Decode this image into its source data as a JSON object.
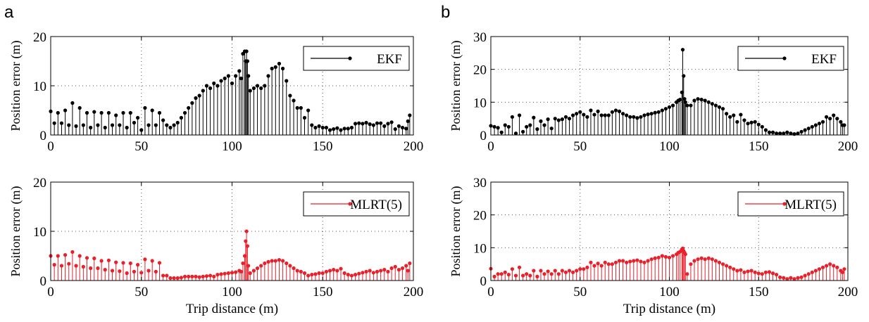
{
  "panels": [
    {
      "letter": "a"
    },
    {
      "letter": "b"
    }
  ],
  "chart_data": [
    {
      "type": "stem",
      "panel": "a",
      "ylabel": "Position error (m)",
      "xlabel": "",
      "xlim": [
        0,
        200
      ],
      "ylim": [
        0,
        20
      ],
      "xticks": [
        0,
        50,
        100,
        150,
        200
      ],
      "yticks": [
        0,
        10,
        20
      ],
      "grid": true,
      "legend_placement": "top-right",
      "series": [
        {
          "name": "EKF",
          "color": "#000000",
          "x": [
            0,
            2,
            4,
            6,
            8,
            10,
            12,
            14,
            16,
            18,
            20,
            22,
            24,
            26,
            28,
            30,
            32,
            34,
            36,
            38,
            40,
            42,
            44,
            46,
            48,
            50,
            52,
            54,
            56,
            58,
            60,
            62,
            64,
            66,
            68,
            70,
            72,
            74,
            76,
            78,
            80,
            82,
            84,
            86,
            88,
            90,
            92,
            94,
            96,
            98,
            100,
            102,
            104,
            105,
            106,
            107,
            107.5,
            108,
            108.5,
            109,
            110,
            112,
            114,
            116,
            118,
            120,
            122,
            124,
            126,
            128,
            130,
            132,
            134,
            136,
            138,
            140,
            142,
            144,
            146,
            148,
            150,
            152,
            154,
            156,
            158,
            160,
            162,
            164,
            166,
            168,
            170,
            172,
            174,
            176,
            178,
            180,
            182,
            184,
            186,
            188,
            190,
            192,
            194,
            196,
            197,
            198
          ],
          "y": [
            4.8,
            2.4,
            4.5,
            2.4,
            5,
            2,
            6.5,
            1.8,
            5.5,
            2,
            4.5,
            1.5,
            4.7,
            2,
            4.5,
            1.5,
            4.5,
            2,
            4,
            2,
            4.5,
            1.5,
            4.5,
            2.5,
            3.5,
            1,
            5.5,
            2,
            5,
            2,
            4.5,
            3,
            2,
            1.5,
            2,
            2.5,
            3.5,
            4.5,
            5.5,
            6.5,
            7.5,
            8,
            9,
            10,
            9.5,
            10.5,
            10,
            11,
            11.5,
            12,
            10.5,
            12,
            13,
            11.5,
            16.5,
            17,
            15,
            17,
            15,
            12,
            9,
            9.5,
            10,
            9.5,
            10,
            12,
            13.5,
            13.8,
            14.5,
            13.5,
            11,
            8,
            7,
            5.5,
            5.5,
            3.5,
            5,
            2,
            1.5,
            1.8,
            1.5,
            1.5,
            1,
            1.2,
            1.4,
            1,
            1.3,
            1.3,
            1.5,
            2.3,
            2.4,
            2.3,
            2.5,
            2.2,
            2,
            2.4,
            2.4,
            1.8,
            2.3,
            2.6,
            1.2,
            1.8,
            1.5,
            1.3,
            2.8,
            4
          ]
        }
      ]
    },
    {
      "type": "stem",
      "panel": "a",
      "ylabel": "Position error (m)",
      "xlabel": "Trip distance (m)",
      "xlim": [
        0,
        200
      ],
      "ylim": [
        0,
        20
      ],
      "xticks": [
        0,
        50,
        100,
        150,
        200
      ],
      "yticks": [
        0,
        10,
        20
      ],
      "grid": true,
      "legend_placement": "top-right",
      "series": [
        {
          "name": "MLRT(5)",
          "color": "#e8202a",
          "x": [
            0,
            2,
            4,
            6,
            8,
            10,
            12,
            14,
            16,
            18,
            20,
            22,
            24,
            26,
            28,
            30,
            32,
            34,
            36,
            38,
            40,
            42,
            44,
            46,
            48,
            50,
            52,
            54,
            56,
            58,
            60,
            62,
            64,
            66,
            68,
            70,
            72,
            74,
            76,
            78,
            80,
            82,
            84,
            86,
            88,
            90,
            92,
            94,
            96,
            98,
            100,
            102,
            104,
            105,
            106,
            107,
            107.5,
            108,
            108.5,
            109,
            110,
            112,
            114,
            116,
            118,
            120,
            122,
            124,
            126,
            128,
            130,
            132,
            134,
            136,
            138,
            140,
            142,
            144,
            146,
            148,
            150,
            152,
            154,
            156,
            158,
            160,
            162,
            164,
            166,
            168,
            170,
            172,
            174,
            176,
            178,
            180,
            182,
            184,
            186,
            188,
            190,
            192,
            194,
            196,
            197,
            198
          ],
          "y": [
            5,
            3.2,
            5,
            3,
            5.2,
            3.4,
            5.8,
            3,
            5,
            2.8,
            4.6,
            2.5,
            4.5,
            2.5,
            4,
            2.2,
            4.1,
            2,
            3.7,
            1.9,
            3.6,
            1.5,
            3.5,
            1.8,
            3.2,
            1.6,
            4.3,
            2,
            4,
            1.8,
            3.6,
            1,
            1,
            0.5,
            0.5,
            0.5,
            0.6,
            0.8,
            0.8,
            0.8,
            0.8,
            0.7,
            0.8,
            0.9,
            1,
            0.8,
            1.2,
            1.3,
            1.4,
            1.5,
            1.6,
            1.7,
            2,
            1.8,
            3.5,
            5,
            8,
            10,
            7,
            3,
            1.5,
            2,
            2.5,
            3,
            3.5,
            3.8,
            4,
            4,
            4.2,
            4,
            3.5,
            3,
            2.5,
            2,
            1.8,
            1.5,
            1,
            1.2,
            1.3,
            1.5,
            1.5,
            1.8,
            2,
            2.2,
            2,
            2.4,
            1.5,
            1.2,
            1,
            1.2,
            1.4,
            1.6,
            1.8,
            2,
            1.6,
            1.8,
            2,
            2.2,
            1.8,
            2.5,
            2.8,
            2.2,
            2.5,
            3,
            2,
            3.5
          ]
        }
      ]
    },
    {
      "type": "stem",
      "panel": "b",
      "ylabel": "Position error (m)",
      "xlabel": "",
      "xlim": [
        0,
        200
      ],
      "ylim": [
        0,
        30
      ],
      "xticks": [
        0,
        50,
        100,
        150,
        200
      ],
      "yticks": [
        0,
        10,
        20,
        30
      ],
      "grid": true,
      "legend_placement": "top-right",
      "series": [
        {
          "name": "EKF",
          "color": "#000000",
          "x": [
            0,
            2,
            4,
            6,
            8,
            10,
            12,
            14,
            16,
            18,
            20,
            22,
            24,
            26,
            28,
            30,
            32,
            34,
            36,
            38,
            40,
            42,
            44,
            46,
            48,
            50,
            52,
            54,
            56,
            58,
            60,
            62,
            64,
            66,
            68,
            70,
            72,
            74,
            76,
            78,
            80,
            82,
            84,
            86,
            88,
            90,
            92,
            94,
            96,
            98,
            100,
            102,
            104,
            105,
            106,
            107,
            107.5,
            108,
            108.5,
            109,
            110,
            112,
            114,
            116,
            118,
            120,
            122,
            124,
            126,
            128,
            130,
            132,
            134,
            136,
            138,
            140,
            142,
            144,
            146,
            148,
            150,
            152,
            154,
            156,
            158,
            160,
            162,
            164,
            166,
            168,
            170,
            172,
            174,
            176,
            178,
            180,
            182,
            184,
            186,
            188,
            190,
            192,
            194,
            196,
            197,
            198
          ],
          "y": [
            2.8,
            2.5,
            2.2,
            0.8,
            3,
            2.5,
            5.5,
            0.5,
            6,
            1,
            2.5,
            3,
            5.3,
            1.8,
            4.2,
            3,
            4.8,
            2,
            5,
            4.5,
            4.8,
            5.5,
            5,
            6,
            6.5,
            7,
            6.2,
            5.5,
            7.5,
            6.2,
            7.2,
            6,
            6,
            6,
            7,
            7.5,
            7.2,
            6.5,
            6,
            5.5,
            5.5,
            5.2,
            5.5,
            6,
            6.3,
            6.5,
            6.8,
            7,
            7.5,
            8,
            8.5,
            9,
            10,
            10.5,
            10.8,
            13,
            26,
            18,
            11,
            10,
            9,
            9,
            10.5,
            11,
            10.8,
            10.5,
            10,
            9.5,
            9,
            8.5,
            8,
            6.5,
            5.5,
            6,
            4,
            6.2,
            4.5,
            3.5,
            3.8,
            4,
            3.2,
            2.5,
            1.5,
            0.8,
            0.8,
            0.5,
            0.5,
            0.5,
            0.8,
            0.5,
            0.3,
            0.5,
            1,
            1.5,
            2,
            2.5,
            3,
            3.5,
            4,
            5.5,
            5,
            6,
            5,
            4,
            3,
            3
          ]
        }
      ]
    },
    {
      "type": "stem",
      "panel": "b",
      "ylabel": "Position error (m)",
      "xlabel": "Trip distance (m)",
      "xlim": [
        0,
        200
      ],
      "ylim": [
        0,
        30
      ],
      "xticks": [
        0,
        50,
        100,
        150,
        200
      ],
      "yticks": [
        0,
        10,
        20,
        30
      ],
      "grid": true,
      "legend_placement": "top-right",
      "series": [
        {
          "name": "MLRT(5)",
          "color": "#e8202a",
          "x": [
            0,
            2,
            4,
            6,
            8,
            10,
            12,
            14,
            16,
            18,
            20,
            22,
            24,
            26,
            28,
            30,
            32,
            34,
            36,
            38,
            40,
            42,
            44,
            46,
            48,
            50,
            52,
            54,
            56,
            58,
            60,
            62,
            64,
            66,
            68,
            70,
            72,
            74,
            76,
            78,
            80,
            82,
            84,
            86,
            88,
            90,
            92,
            94,
            96,
            98,
            100,
            102,
            104,
            105,
            106,
            107,
            107.5,
            108,
            108.5,
            109,
            110,
            112,
            114,
            116,
            118,
            120,
            122,
            124,
            126,
            128,
            130,
            132,
            134,
            136,
            138,
            140,
            142,
            144,
            146,
            148,
            150,
            152,
            154,
            156,
            158,
            160,
            162,
            164,
            166,
            168,
            170,
            172,
            174,
            176,
            178,
            180,
            182,
            184,
            186,
            188,
            190,
            192,
            194,
            196,
            197,
            198
          ],
          "y": [
            3.6,
            1.2,
            2,
            2,
            2.5,
            1.8,
            3.5,
            1.5,
            4,
            1.5,
            2,
            1.5,
            3,
            1.2,
            3,
            2,
            2.8,
            2,
            3,
            2,
            3,
            2.5,
            3,
            2.5,
            3,
            3.5,
            3.5,
            4,
            5.5,
            4.5,
            5.2,
            4.5,
            5.5,
            5,
            5,
            5.5,
            6,
            6,
            5.5,
            5.8,
            6,
            6.2,
            5.8,
            5.5,
            6,
            6.5,
            6.8,
            7,
            7.5,
            7.2,
            7,
            7.5,
            8,
            8.5,
            8.8,
            9.5,
            9.8,
            9,
            8.5,
            8,
            2,
            5,
            6,
            6.5,
            6.8,
            6.5,
            6.8,
            6.5,
            6,
            5.5,
            5,
            4.5,
            4,
            3.5,
            3,
            3.2,
            2.5,
            2.8,
            3,
            2.5,
            2.2,
            2,
            2.5,
            2.6,
            2.2,
            1.8,
            1,
            0.8,
            0.5,
            0.8,
            0.5,
            0.8,
            1,
            1.5,
            2,
            2.5,
            3,
            3.5,
            4,
            4.5,
            5,
            4.5,
            4,
            3,
            2.5,
            3.5
          ]
        }
      ]
    }
  ]
}
